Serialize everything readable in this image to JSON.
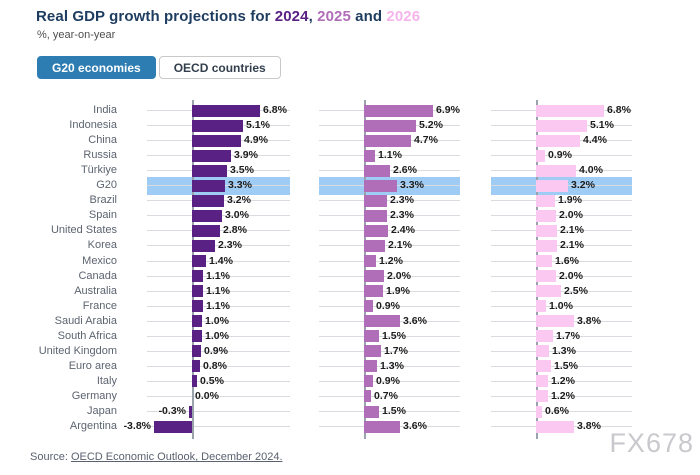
{
  "title": {
    "prefix": "Real GDP growth projections for ",
    "segments": [
      {
        "text": "2024",
        "color": "#5a2185"
      },
      {
        "text": ", ",
        "color": "#1d3c5f"
      },
      {
        "text": "2025",
        "color": "#b06db8"
      },
      {
        "text": " and ",
        "color": "#1d3c5f"
      },
      {
        "text": "2026",
        "color": "#f6b4ec"
      }
    ]
  },
  "subtitle": "%, year-on-year",
  "tabs": [
    {
      "label": "G20 economies",
      "active": true
    },
    {
      "label": "OECD countries",
      "active": false
    }
  ],
  "source": {
    "prefix": "Source: ",
    "link": "OECD Economic Outlook, December 2024."
  },
  "watermark": "FX678",
  "colors": {
    "series_2024": "#5a2185",
    "series_2025": "#b06db8",
    "series_2026": "#fbc8f1",
    "highlight_band": "#9fccf5",
    "active_tab": "#2e7db2",
    "gridline": "#d8dce1",
    "zero_axis": "#9aa2ab"
  },
  "chart_data": {
    "type": "bar",
    "orientation": "horizontal",
    "title": "Real GDP growth projections for 2024, 2025 and 2026",
    "subtitle": "%, year-on-year",
    "value_suffix": "%",
    "xlim": [
      -4.4,
      9.6
    ],
    "grid": "per-row horizontal lines",
    "legend_position": "in-title (colored year text)",
    "highlight_category": "G20",
    "categories": [
      "India",
      "Indonesia",
      "China",
      "Russia",
      "Türkiye",
      "G20",
      "Brazil",
      "Spain",
      "United States",
      "Korea",
      "Mexico",
      "Canada",
      "Australia",
      "France",
      "Saudi Arabia",
      "South Africa",
      "United Kingdom",
      "Euro area",
      "Italy",
      "Germany",
      "Japan",
      "Argentina"
    ],
    "series": [
      {
        "name": "2024",
        "color": "#5a2185",
        "values": [
          6.8,
          5.1,
          4.9,
          3.9,
          3.5,
          3.3,
          3.2,
          3.0,
          2.8,
          2.3,
          1.4,
          1.1,
          1.1,
          1.1,
          1.0,
          1.0,
          0.9,
          0.8,
          0.5,
          0.0,
          -0.3,
          -3.8
        ]
      },
      {
        "name": "2025",
        "color": "#b06db8",
        "values": [
          6.9,
          5.2,
          4.7,
          1.1,
          2.6,
          3.3,
          2.3,
          2.3,
          2.4,
          2.1,
          1.2,
          2.0,
          1.9,
          0.9,
          3.6,
          1.5,
          1.7,
          1.3,
          0.9,
          0.7,
          1.5,
          3.6
        ]
      },
      {
        "name": "2026",
        "color": "#fbc8f1",
        "values": [
          6.8,
          5.1,
          4.4,
          0.9,
          4.0,
          3.2,
          1.9,
          2.0,
          2.1,
          2.1,
          1.6,
          2.0,
          2.5,
          1.0,
          3.8,
          1.7,
          1.3,
          1.5,
          1.2,
          1.2,
          0.6,
          3.8
        ]
      }
    ]
  }
}
